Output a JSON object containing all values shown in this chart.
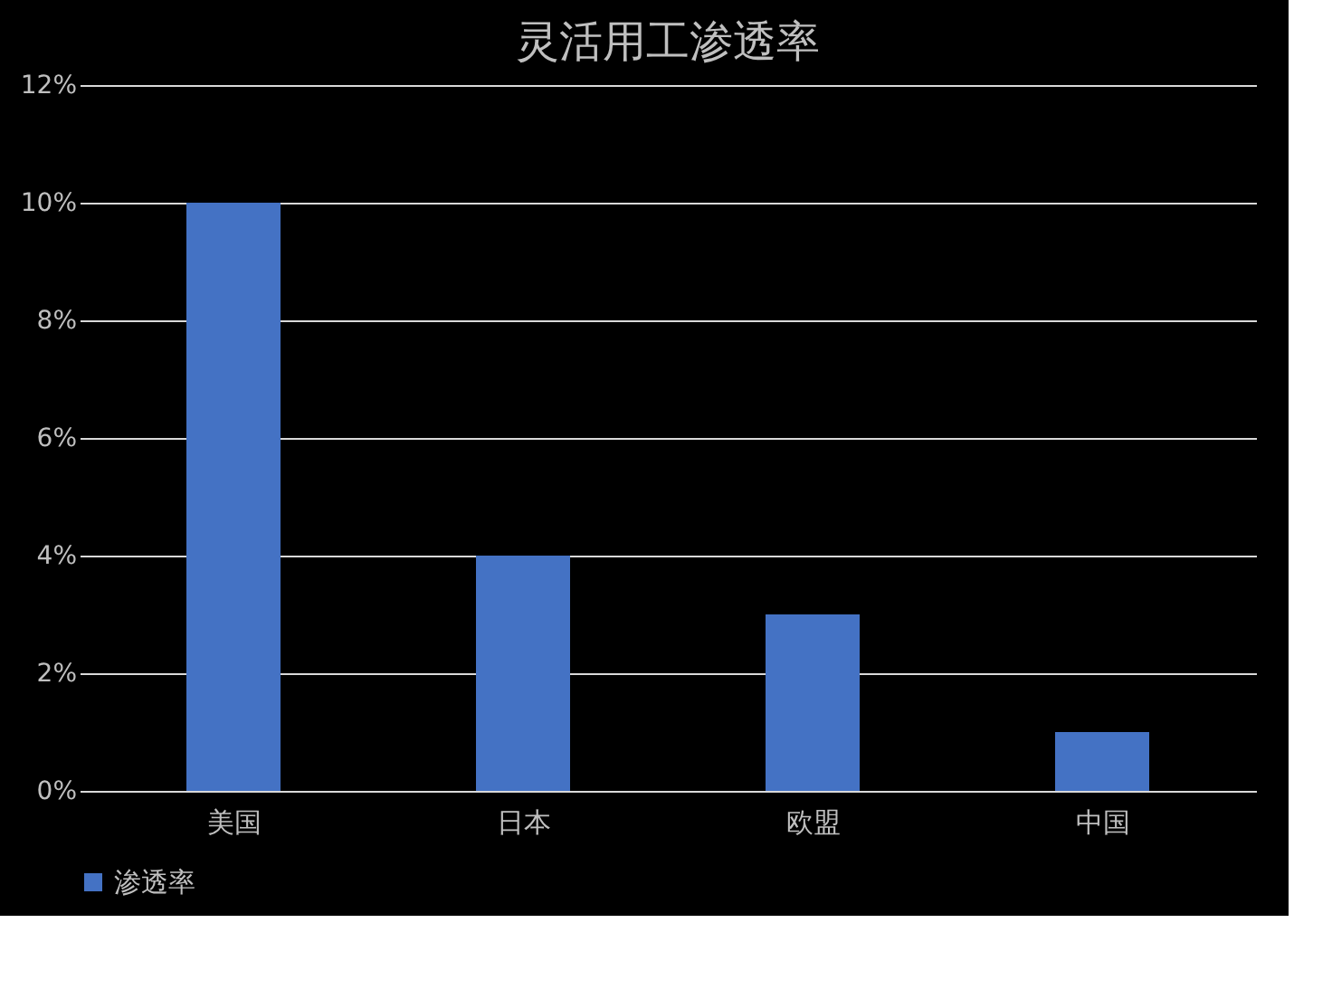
{
  "chart_data": {
    "type": "bar",
    "title": "灵活用工渗透率",
    "categories": [
      "美国",
      "日本",
      "欧盟",
      "中国"
    ],
    "series": [
      {
        "name": "渗透率",
        "color": "#4472c4",
        "values": [
          10,
          4,
          3,
          1
        ]
      }
    ],
    "ylim": [
      0,
      12
    ],
    "yticks": [
      {
        "value": 0,
        "label": "0%"
      },
      {
        "value": 2,
        "label": "2%"
      },
      {
        "value": 4,
        "label": "4%"
      },
      {
        "value": 6,
        "label": "6%"
      },
      {
        "value": 8,
        "label": "8%"
      },
      {
        "value": 10,
        "label": "10%"
      },
      {
        "value": 12,
        "label": "12%"
      }
    ],
    "grid": "y",
    "legend": "bottom"
  }
}
